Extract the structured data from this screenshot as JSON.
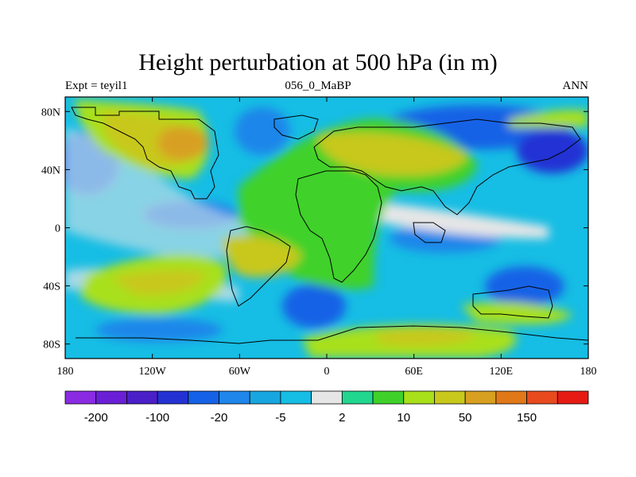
{
  "title": "Height perturbation at 500 hPa (in m)",
  "subtitle_left": "Expt = teyil1",
  "subtitle_center": "056_0_MaBP",
  "subtitle_right": "ANN",
  "axes": {
    "x_ticks": [
      {
        "value": -180,
        "label": "180"
      },
      {
        "value": -120,
        "label": "120W"
      },
      {
        "value": -60,
        "label": "60W"
      },
      {
        "value": 0,
        "label": "0"
      },
      {
        "value": 60,
        "label": "60E"
      },
      {
        "value": 120,
        "label": "120E"
      },
      {
        "value": 180,
        "label": "180"
      }
    ],
    "y_ticks": [
      {
        "value": 80,
        "label": "80N"
      },
      {
        "value": 40,
        "label": "40N"
      },
      {
        "value": 0,
        "label": "0"
      },
      {
        "value": -40,
        "label": "40S"
      },
      {
        "value": -80,
        "label": "80S"
      }
    ],
    "lon_range": [
      -180,
      180
    ],
    "lat_range": [
      -90,
      90
    ]
  },
  "colorbar": {
    "colors": [
      "#8a2be2",
      "#6a1fd6",
      "#4b1fc8",
      "#2432d4",
      "#1562e6",
      "#1f86ea",
      "#18a6e0",
      "#16bde4",
      "#e6e6e6",
      "#22d690",
      "#3fd12a",
      "#a8e01a",
      "#c8c81c",
      "#d8a020",
      "#e07818",
      "#e84a1e",
      "#e61a12"
    ],
    "labels": [
      {
        "boundary": 1,
        "text": "-200"
      },
      {
        "boundary": 3,
        "text": "-100"
      },
      {
        "boundary": 5,
        "text": "-20"
      },
      {
        "boundary": 7,
        "text": "-5"
      },
      {
        "boundary": 9,
        "text": "2"
      },
      {
        "boundary": 11,
        "text": "10"
      },
      {
        "boundary": 13,
        "text": "50"
      },
      {
        "boundary": 15,
        "text": "150"
      }
    ]
  }
}
